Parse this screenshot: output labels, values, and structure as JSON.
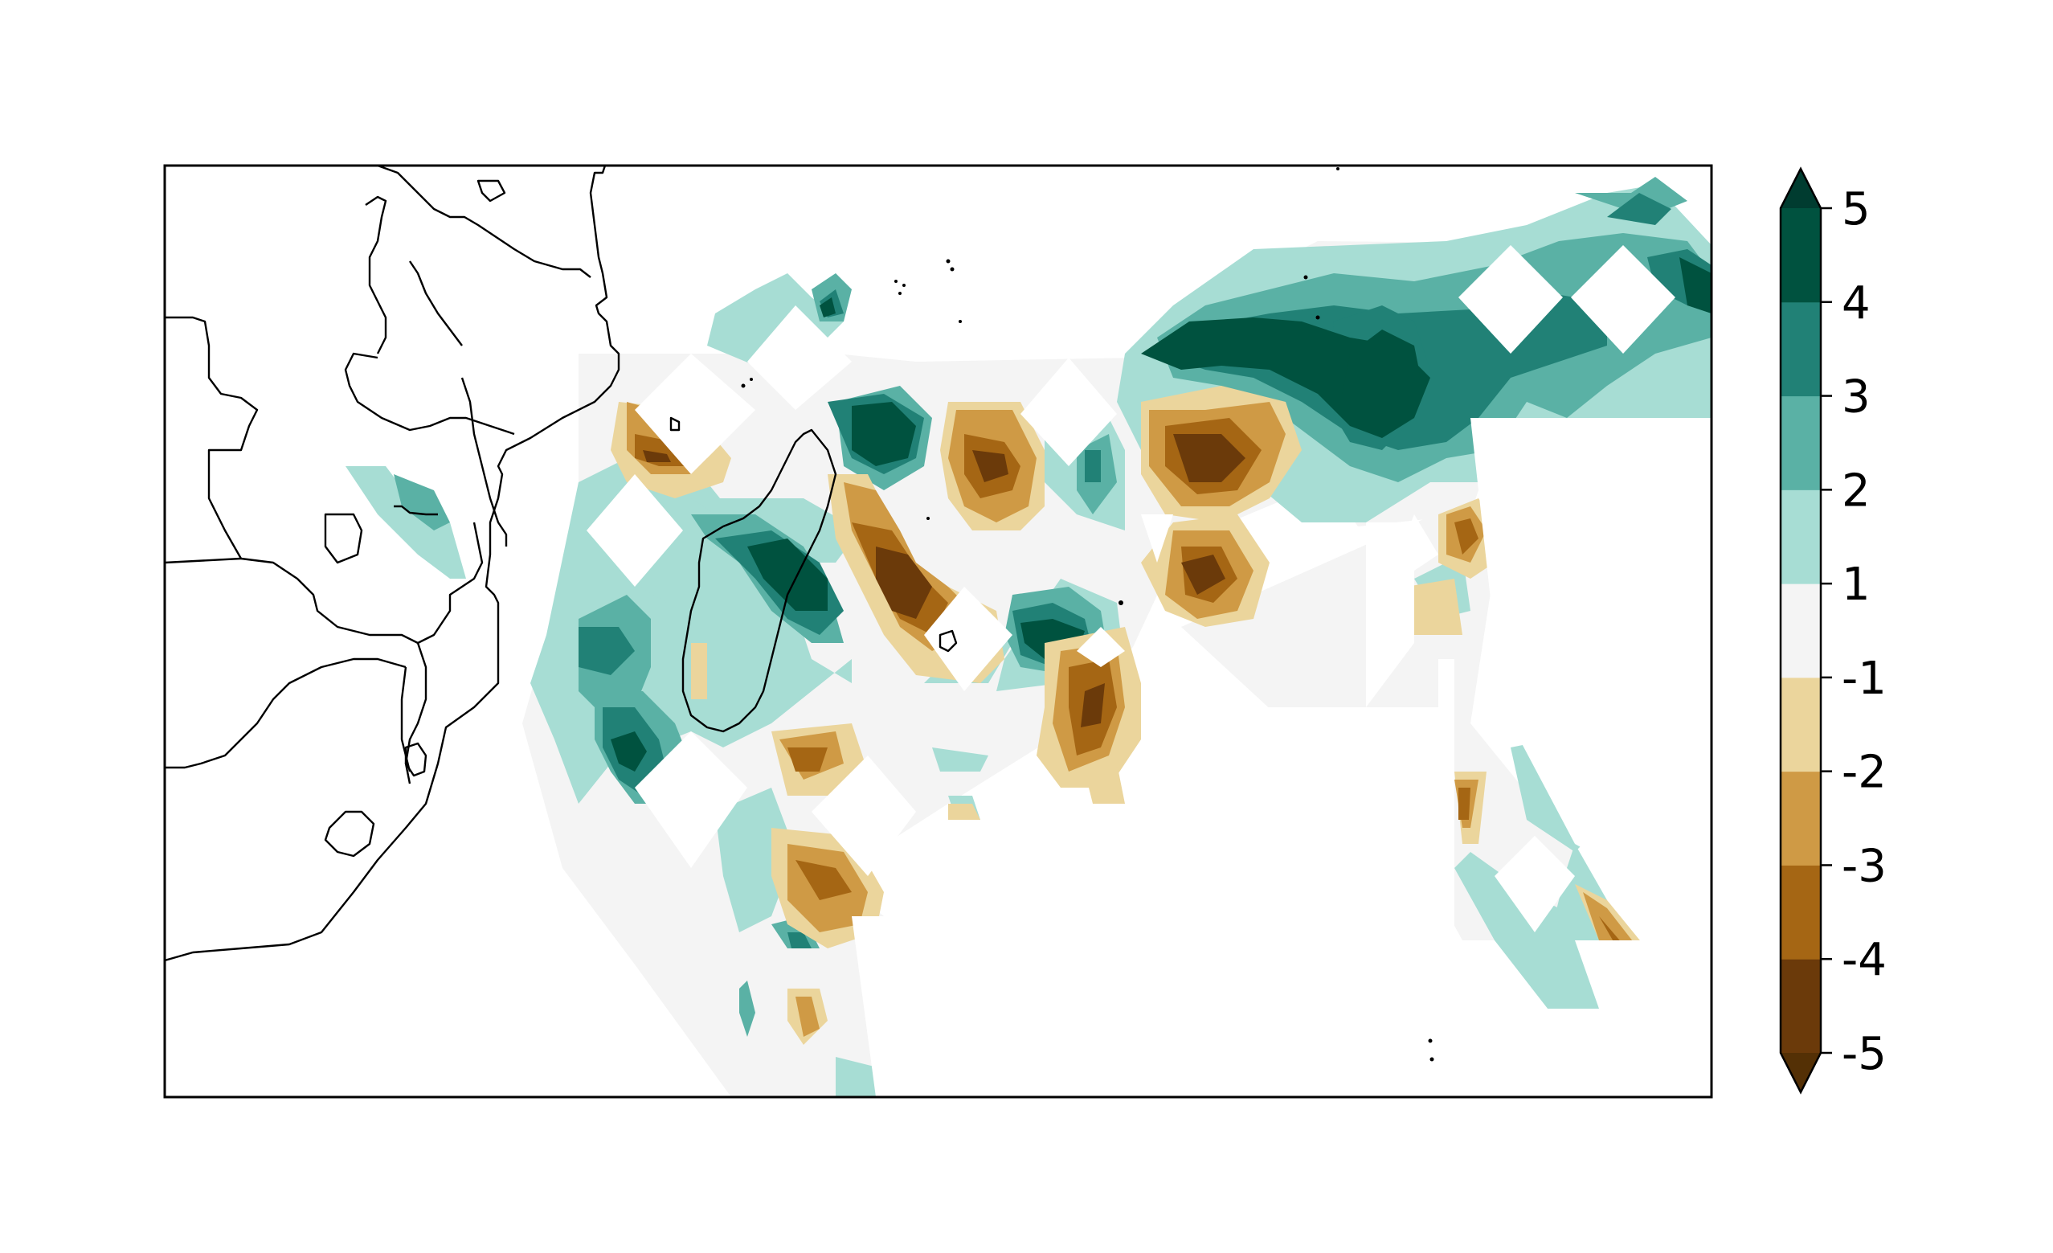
{
  "figure": {
    "type": "filled-contour-map",
    "colormap": "BrBG",
    "colorbar": {
      "position": "right",
      "extend": "both",
      "tick_labels": [
        "5",
        "4",
        "3",
        "2",
        "1",
        "-1",
        "-2",
        "-3",
        "-4",
        "-5"
      ],
      "levels": [
        -5,
        -4,
        -3,
        -2,
        -1,
        1,
        2,
        3,
        4,
        5
      ],
      "colors": [
        "#6b3a0a",
        "#a56614",
        "#cf9a45",
        "#ebd59c",
        "#f4f4f4",
        "#a7ddd4",
        "#5ab1a5",
        "#218176",
        "#00523f"
      ],
      "under_color": "#543005",
      "over_color": "#003c30"
    },
    "map": {
      "features": [
        "coastlines",
        "country-borders"
      ],
      "background": "#ffffff"
    }
  }
}
